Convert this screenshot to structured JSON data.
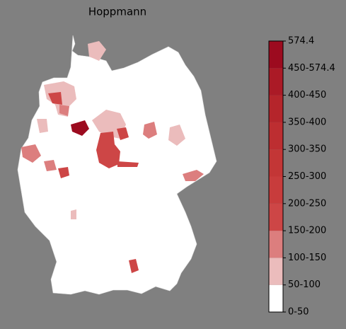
{
  "title": "Hoppmann",
  "colorbar": {
    "labels": [
      "0-50",
      "50-100",
      "100-150",
      "150-200",
      "200-250",
      "250-300",
      "300-350",
      "350-400",
      "400-450",
      "450-574.4",
      "574.4"
    ],
    "colors": [
      "#ffffff",
      "#ebbcbc",
      "#dc7e7e",
      "#cd4646",
      "#c83c3c",
      "#c33636",
      "#bd2e31",
      "#b5252b",
      "#ab1a26",
      "#9c0b1f"
    ]
  }
}
